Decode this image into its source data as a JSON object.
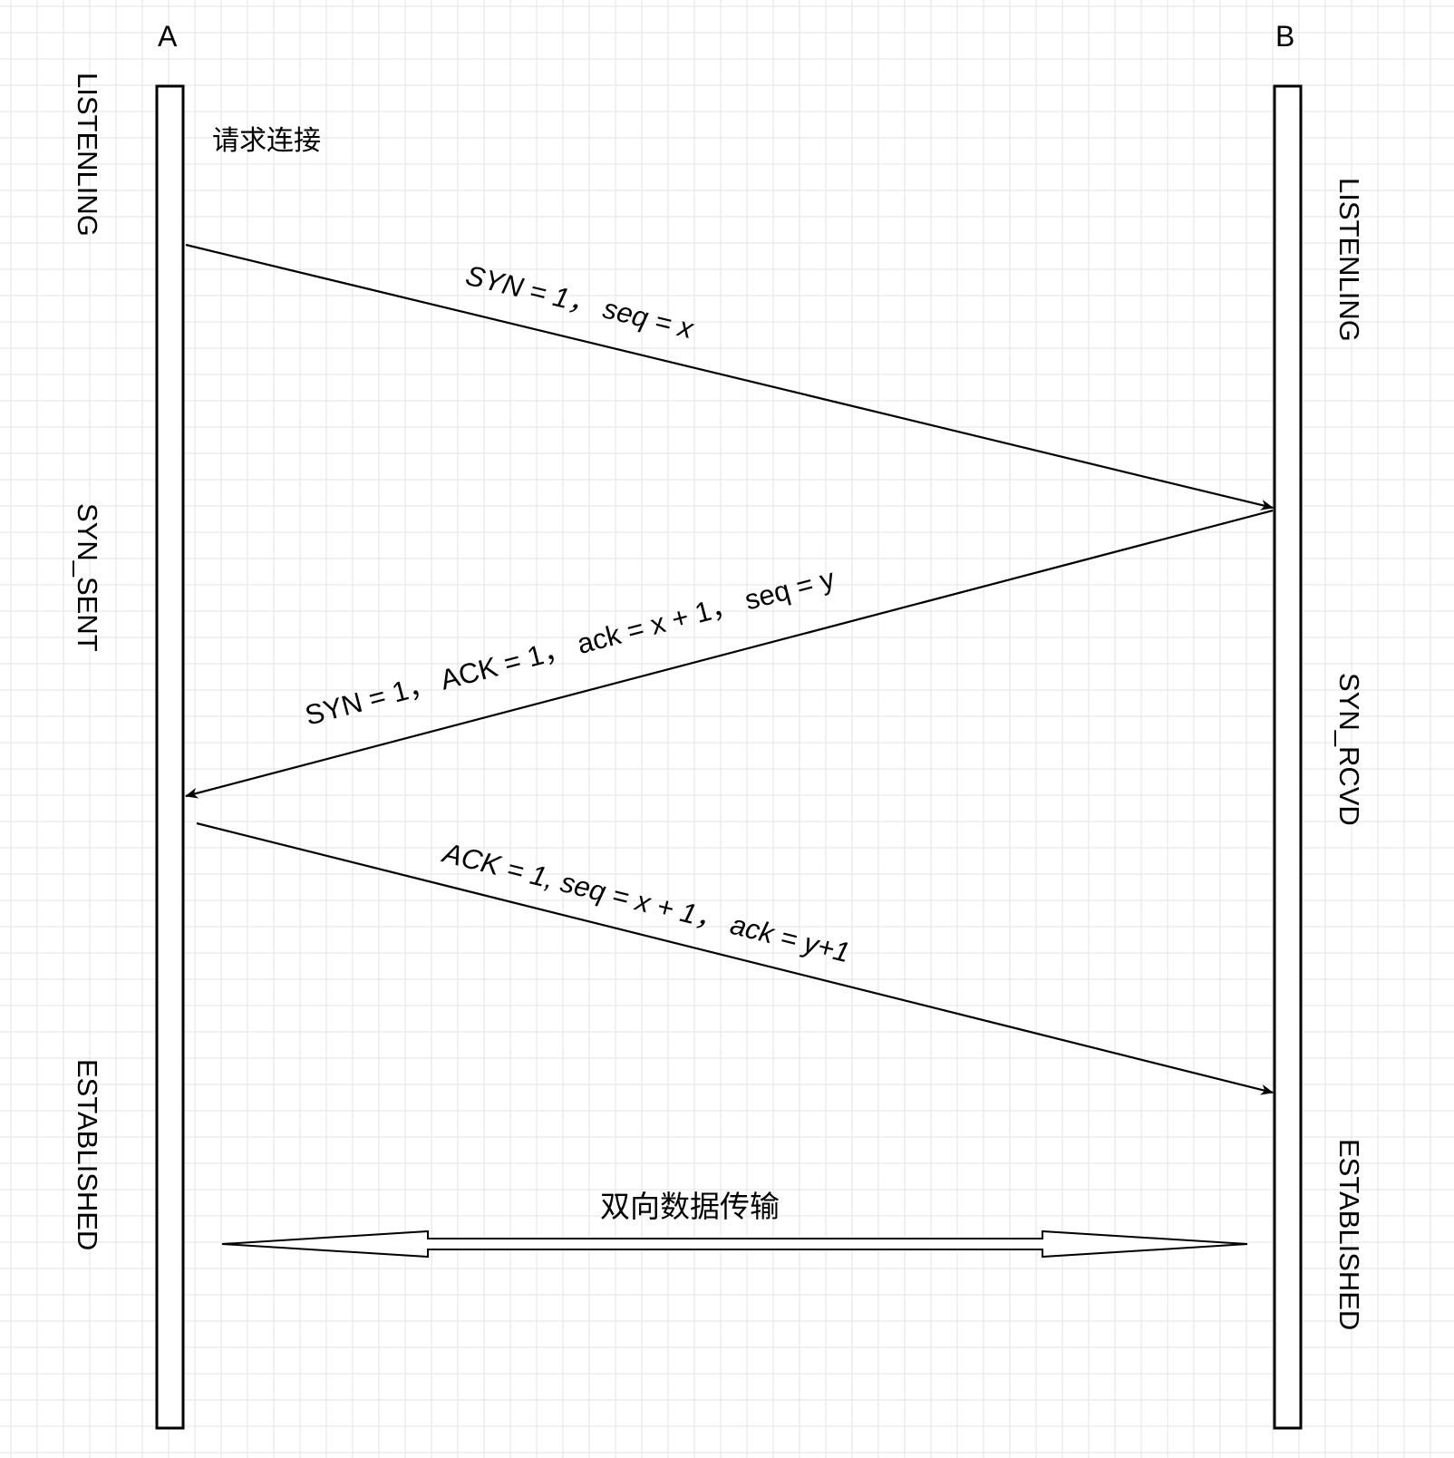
{
  "participants": {
    "a": "A",
    "b": "B"
  },
  "states": {
    "a_listening": "LISTENLING",
    "a_syn_sent": "SYN_SENT",
    "a_established": "ESTABLISHED",
    "b_listening": "LISTENLING",
    "b_syn_rcvd": "SYN_RCVD",
    "b_established": "ESTABLISHED"
  },
  "notes": {
    "request": "请求连接",
    "bidirectional": "双向数据传输"
  },
  "messages": {
    "m1": "SYN = 1，  seq = x",
    "m2": "SYN = 1，  ACK = 1，  ack = x + 1，  seq = y",
    "m3": "ACK = 1, seq = x + 1，  ack = y+1"
  }
}
